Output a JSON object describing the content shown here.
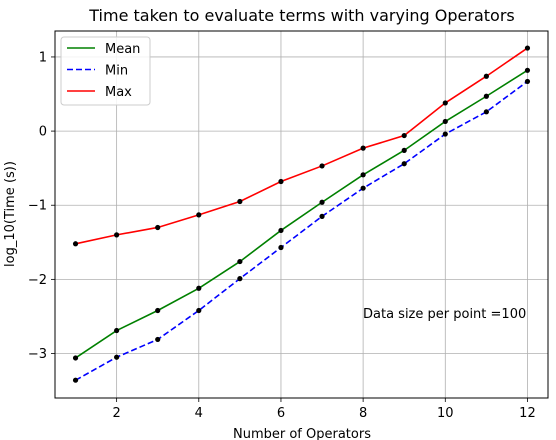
{
  "chart_data": {
    "type": "line",
    "title": "Time taken to evaluate terms with varying Operators",
    "xlabel": "Number of Operators",
    "ylabel": "log_10(Time (s))",
    "xlim": [
      0.5,
      12.5
    ],
    "ylim": [
      -3.6,
      1.35
    ],
    "xticks": [
      2,
      4,
      6,
      8,
      10,
      12
    ],
    "yticks": [
      -3,
      -2,
      -1,
      0,
      1
    ],
    "ytick_labels": [
      "−3",
      "−2",
      "−1",
      "0",
      "1"
    ],
    "grid": true,
    "legend_position": "top-left",
    "annotation": "Data size per point =100",
    "x": [
      1,
      2,
      3,
      4,
      5,
      6,
      7,
      8,
      9,
      10,
      11,
      12
    ],
    "series": [
      {
        "name": "Mean",
        "color": "#008000",
        "style": "solid",
        "values": [
          -3.06,
          -2.69,
          -2.42,
          -2.12,
          -1.76,
          -1.34,
          -0.96,
          -0.59,
          -0.26,
          0.13,
          0.47,
          0.82
        ]
      },
      {
        "name": "Min",
        "color": "#0000ff",
        "style": "dashed",
        "values": [
          -3.36,
          -3.05,
          -2.81,
          -2.42,
          -1.99,
          -1.57,
          -1.15,
          -0.77,
          -0.44,
          -0.04,
          0.26,
          0.67
        ]
      },
      {
        "name": "Max",
        "color": "#ff0000",
        "style": "solid",
        "values": [
          -1.52,
          -1.4,
          -1.3,
          -1.13,
          -0.95,
          -0.68,
          -0.47,
          -0.23,
          -0.06,
          0.38,
          0.74,
          1.12
        ]
      }
    ]
  }
}
